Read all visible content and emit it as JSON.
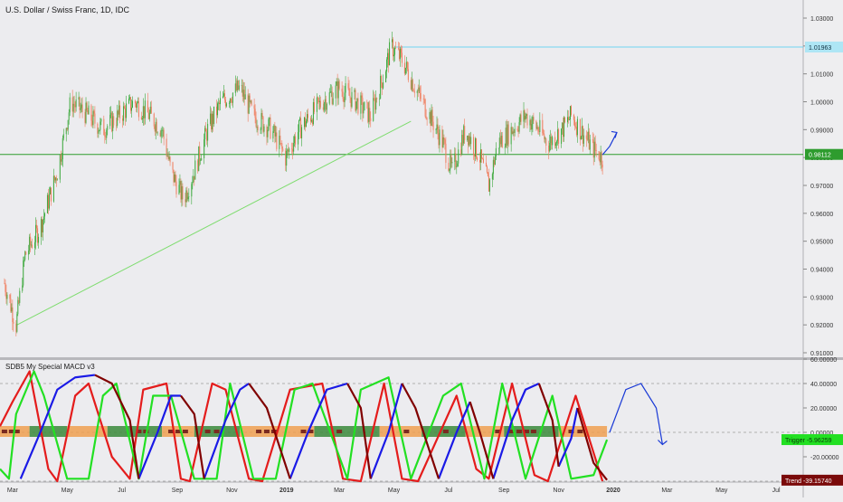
{
  "chart_data": [
    {
      "type": "candlestick",
      "title": "U.S. Dollar / Swiss Franc, 1D, IDC",
      "ylim": [
        0.91,
        1.03
      ],
      "y_ticks": [
        "0.91000",
        "0.92000",
        "0.93000",
        "0.94000",
        "0.95000",
        "0.96000",
        "0.97000",
        "0.98000",
        "0.99000",
        "1.00000",
        "1.01000",
        "1.02000",
        "1.03000"
      ],
      "x_ticks": [
        "Mar",
        "May",
        "Jul",
        "Sep",
        "Nov",
        "2019",
        "Mar",
        "May",
        "Jul",
        "Sep",
        "Nov",
        "2020",
        "Mar",
        "May",
        "Jul"
      ],
      "price_path": [
        {
          "x": "2018-02-20",
          "y": 0.935
        },
        {
          "x": "2018-03-05",
          "y": 0.92
        },
        {
          "x": "2018-03-15",
          "y": 0.945
        },
        {
          "x": "2018-04-01",
          "y": 0.955
        },
        {
          "x": "2018-04-20",
          "y": 0.975
        },
        {
          "x": "2018-05-05",
          "y": 1.0
        },
        {
          "x": "2018-05-25",
          "y": 0.995
        },
        {
          "x": "2018-06-10",
          "y": 0.99
        },
        {
          "x": "2018-06-28",
          "y": 0.995
        },
        {
          "x": "2018-07-15",
          "y": 1.0
        },
        {
          "x": "2018-08-01",
          "y": 0.995
        },
        {
          "x": "2018-08-15",
          "y": 0.99
        },
        {
          "x": "2018-08-25",
          "y": 0.975
        },
        {
          "x": "2018-09-08",
          "y": 0.965
        },
        {
          "x": "2018-09-20",
          "y": 0.975
        },
        {
          "x": "2018-10-05",
          "y": 0.99
        },
        {
          "x": "2018-10-20",
          "y": 1.0
        },
        {
          "x": "2018-11-10",
          "y": 1.005
        },
        {
          "x": "2018-11-25",
          "y": 0.995
        },
        {
          "x": "2018-12-15",
          "y": 0.99
        },
        {
          "x": "2018-12-31",
          "y": 0.98
        },
        {
          "x": "2019-01-15",
          "y": 0.99
        },
        {
          "x": "2019-02-10",
          "y": 1.0
        },
        {
          "x": "2019-03-01",
          "y": 1.005
        },
        {
          "x": "2019-03-20",
          "y": 1.0
        },
        {
          "x": "2019-04-05",
          "y": 0.995
        },
        {
          "x": "2019-04-20",
          "y": 1.01
        },
        {
          "x": "2019-04-28",
          "y": 1.02
        },
        {
          "x": "2019-05-10",
          "y": 1.015
        },
        {
          "x": "2019-05-25",
          "y": 1.005
        },
        {
          "x": "2019-06-10",
          "y": 0.995
        },
        {
          "x": "2019-06-25",
          "y": 0.985
        },
        {
          "x": "2019-07-05",
          "y": 0.975
        },
        {
          "x": "2019-07-20",
          "y": 0.99
        },
        {
          "x": "2019-08-05",
          "y": 0.98
        },
        {
          "x": "2019-08-15",
          "y": 0.97
        },
        {
          "x": "2019-08-25",
          "y": 0.985
        },
        {
          "x": "2019-09-10",
          "y": 0.99
        },
        {
          "x": "2019-09-25",
          "y": 0.995
        },
        {
          "x": "2019-10-10",
          "y": 0.99
        },
        {
          "x": "2019-10-20",
          "y": 0.985
        },
        {
          "x": "2019-11-05",
          "y": 0.99
        },
        {
          "x": "2019-11-15",
          "y": 0.995
        },
        {
          "x": "2019-11-25",
          "y": 0.99
        },
        {
          "x": "2019-12-10",
          "y": 0.983
        },
        {
          "x": "2019-12-20",
          "y": 0.98
        }
      ],
      "projection_path": [
        {
          "x": "2019-12-20",
          "y": 0.981
        },
        {
          "x": "2019-12-28",
          "y": 0.984
        },
        {
          "x": "2020-01-05",
          "y": 0.989
        }
      ],
      "trendline": [
        {
          "x": "2018-03-06",
          "y": 0.92
        },
        {
          "x": "2019-05-20",
          "y": 0.993
        }
      ],
      "hlines": [
        {
          "y": 1.01963,
          "label": "1.01963",
          "color": "#6fd3f0",
          "start_x": "2019-05-03"
        },
        {
          "y": 0.98112,
          "label": "0.98112",
          "color": "#2e9c2e",
          "start_x": "2018-02-15"
        }
      ],
      "colors": {
        "up": "#3ca83c",
        "down": "#f07a5a",
        "trendline": "#7edc6e",
        "projection": "#1a3ad6"
      }
    },
    {
      "type": "line",
      "title": "SDB5 My Special MACD v3",
      "ylim": [
        -40,
        60
      ],
      "y_ticks": [
        "60.00000",
        "40.00000",
        "20.00000",
        "0.00000",
        "-20.00000"
      ],
      "hlines": [
        40,
        0,
        -40
      ],
      "labels": [
        {
          "text": "Trigger  -5.96259",
          "y": -5.96259,
          "bg": "#22e022"
        },
        {
          "text": "Trend  -39.15740",
          "y": -39.1574,
          "bg": "#7a0a0a"
        }
      ],
      "series": [
        {
          "color": "#e41c1c",
          "values": [
            {
              "x": "2018-02-15",
              "y": 5
            },
            {
              "x": "2018-03-01",
              "y": 25
            },
            {
              "x": "2018-03-20",
              "y": 50
            },
            {
              "x": "2018-04-10",
              "y": -30
            },
            {
              "x": "2018-04-20",
              "y": -40
            },
            {
              "x": "2018-05-10",
              "y": 30
            },
            {
              "x": "2018-05-25",
              "y": 40
            },
            {
              "x": "2018-06-20",
              "y": -20
            },
            {
              "x": "2018-07-10",
              "y": -38
            },
            {
              "x": "2018-07-25",
              "y": 35
            },
            {
              "x": "2018-08-20",
              "y": 40
            },
            {
              "x": "2018-09-05",
              "y": -38
            },
            {
              "x": "2018-09-15",
              "y": -40
            },
            {
              "x": "2018-10-10",
              "y": 40
            },
            {
              "x": "2018-10-25",
              "y": 35
            },
            {
              "x": "2018-11-20",
              "y": -38
            },
            {
              "x": "2018-12-05",
              "y": -40
            },
            {
              "x": "2019-01-05",
              "y": 35
            },
            {
              "x": "2019-02-10",
              "y": 40
            },
            {
              "x": "2019-03-05",
              "y": -38
            },
            {
              "x": "2019-03-25",
              "y": -40
            },
            {
              "x": "2019-04-20",
              "y": 40
            },
            {
              "x": "2019-05-10",
              "y": -38
            },
            {
              "x": "2019-05-28",
              "y": -40
            },
            {
              "x": "2019-07-10",
              "y": 30
            },
            {
              "x": "2019-08-01",
              "y": -30
            },
            {
              "x": "2019-08-15",
              "y": -38
            },
            {
              "x": "2019-09-10",
              "y": 40
            },
            {
              "x": "2019-10-05",
              "y": -35
            },
            {
              "x": "2019-10-20",
              "y": -40
            },
            {
              "x": "2019-11-20",
              "y": 30
            },
            {
              "x": "2019-12-20",
              "y": -40
            }
          ]
        },
        {
          "color": "#22e022",
          "values": [
            {
              "x": "2018-02-15",
              "y": -30
            },
            {
              "x": "2018-02-25",
              "y": -38
            },
            {
              "x": "2018-03-05",
              "y": 15
            },
            {
              "x": "2018-03-25",
              "y": 50
            },
            {
              "x": "2018-04-05",
              "y": 30
            },
            {
              "x": "2018-05-01",
              "y": -38
            },
            {
              "x": "2018-05-25",
              "y": -38
            },
            {
              "x": "2018-06-10",
              "y": 30
            },
            {
              "x": "2018-06-25",
              "y": 40
            },
            {
              "x": "2018-07-20",
              "y": -38
            },
            {
              "x": "2018-08-05",
              "y": 30
            },
            {
              "x": "2018-08-25",
              "y": 30
            },
            {
              "x": "2018-09-20",
              "y": -38
            },
            {
              "x": "2018-10-15",
              "y": -38
            },
            {
              "x": "2018-10-30",
              "y": 40
            },
            {
              "x": "2018-11-25",
              "y": -38
            },
            {
              "x": "2018-12-20",
              "y": -38
            },
            {
              "x": "2019-01-10",
              "y": 35
            },
            {
              "x": "2019-01-30",
              "y": 40
            },
            {
              "x": "2019-03-10",
              "y": -38
            },
            {
              "x": "2019-03-25",
              "y": 35
            },
            {
              "x": "2019-04-25",
              "y": 45
            },
            {
              "x": "2019-05-20",
              "y": -38
            },
            {
              "x": "2019-06-25",
              "y": 30
            },
            {
              "x": "2019-07-15",
              "y": 40
            },
            {
              "x": "2019-08-10",
              "y": -38
            },
            {
              "x": "2019-08-30",
              "y": 40
            },
            {
              "x": "2019-09-25",
              "y": -38
            },
            {
              "x": "2019-10-25",
              "y": 30
            },
            {
              "x": "2019-11-15",
              "y": -38
            },
            {
              "x": "2019-12-10",
              "y": -35
            },
            {
              "x": "2019-12-25",
              "y": -6
            }
          ]
        },
        {
          "color": "#1a1ae6",
          "values": [
            {
              "x": "2018-03-10",
              "y": -38
            },
            {
              "x": "2018-04-01",
              "y": 0
            },
            {
              "x": "2018-04-20",
              "y": 35
            },
            {
              "x": "2018-05-10",
              "y": 45
            },
            {
              "x": "2018-06-01",
              "y": 47
            }
          ]
        },
        {
          "color": "#1a1ae6",
          "values": [
            {
              "x": "2018-07-20",
              "y": -38
            },
            {
              "x": "2018-08-10",
              "y": 0
            },
            {
              "x": "2018-08-25",
              "y": 30
            },
            {
              "x": "2018-09-05",
              "y": 30
            }
          ]
        },
        {
          "color": "#1a1ae6",
          "values": [
            {
              "x": "2018-10-01",
              "y": -38
            },
            {
              "x": "2018-10-25",
              "y": 10
            },
            {
              "x": "2018-11-10",
              "y": 35
            },
            {
              "x": "2018-11-20",
              "y": 40
            }
          ]
        },
        {
          "color": "#1a1ae6",
          "values": [
            {
              "x": "2019-01-05",
              "y": -38
            },
            {
              "x": "2019-01-25",
              "y": 0
            },
            {
              "x": "2019-02-15",
              "y": 35
            },
            {
              "x": "2019-03-10",
              "y": 40
            }
          ]
        },
        {
          "color": "#1a1ae6",
          "values": [
            {
              "x": "2019-04-05",
              "y": -38
            },
            {
              "x": "2019-04-25",
              "y": 0
            },
            {
              "x": "2019-05-10",
              "y": 40
            }
          ]
        },
        {
          "color": "#1a1ae6",
          "values": [
            {
              "x": "2019-06-20",
              "y": -38
            },
            {
              "x": "2019-07-10",
              "y": 0
            },
            {
              "x": "2019-07-25",
              "y": 25
            }
          ]
        },
        {
          "color": "#1a1ae6",
          "values": [
            {
              "x": "2019-08-20",
              "y": -38
            },
            {
              "x": "2019-09-10",
              "y": 10
            },
            {
              "x": "2019-09-25",
              "y": 35
            },
            {
              "x": "2019-10-10",
              "y": 40
            }
          ]
        },
        {
          "color": "#1a1ae6",
          "values": [
            {
              "x": "2019-11-01",
              "y": -28
            },
            {
              "x": "2019-11-15",
              "y": -5
            },
            {
              "x": "2019-11-22",
              "y": 20
            }
          ]
        },
        {
          "color": "#800000",
          "values": [
            {
              "x": "2018-06-01",
              "y": 47
            },
            {
              "x": "2018-06-20",
              "y": 40
            },
            {
              "x": "2018-07-10",
              "y": 10
            },
            {
              "x": "2018-07-20",
              "y": -38
            }
          ]
        },
        {
          "color": "#800000",
          "values": [
            {
              "x": "2018-09-05",
              "y": 30
            },
            {
              "x": "2018-09-20",
              "y": 15
            },
            {
              "x": "2018-10-01",
              "y": -38
            }
          ]
        },
        {
          "color": "#800000",
          "values": [
            {
              "x": "2018-11-20",
              "y": 40
            },
            {
              "x": "2018-12-10",
              "y": 20
            },
            {
              "x": "2019-01-05",
              "y": -38
            }
          ]
        },
        {
          "color": "#800000",
          "values": [
            {
              "x": "2019-03-10",
              "y": 40
            },
            {
              "x": "2019-03-25",
              "y": 20
            },
            {
              "x": "2019-04-05",
              "y": -38
            }
          ]
        },
        {
          "color": "#800000",
          "values": [
            {
              "x": "2019-05-10",
              "y": 40
            },
            {
              "x": "2019-05-25",
              "y": 20
            },
            {
              "x": "2019-06-20",
              "y": -38
            }
          ]
        },
        {
          "color": "#800000",
          "values": [
            {
              "x": "2019-07-25",
              "y": 25
            },
            {
              "x": "2019-08-05",
              "y": 0
            },
            {
              "x": "2019-08-20",
              "y": -38
            }
          ]
        },
        {
          "color": "#800000",
          "values": [
            {
              "x": "2019-10-10",
              "y": 40
            },
            {
              "x": "2019-10-25",
              "y": 10
            },
            {
              "x": "2019-11-01",
              "y": -28
            }
          ]
        },
        {
          "color": "#800000",
          "values": [
            {
              "x": "2019-11-22",
              "y": 20
            },
            {
              "x": "2019-12-10",
              "y": -25
            },
            {
              "x": "2019-12-25",
              "y": -39
            }
          ]
        }
      ],
      "projection_path": [
        {
          "x": "2019-12-28",
          "y": 0
        },
        {
          "x": "2020-01-15",
          "y": 35
        },
        {
          "x": "2020-02-01",
          "y": 40
        },
        {
          "x": "2020-02-18",
          "y": 20
        },
        {
          "x": "2020-02-25",
          "y": -10
        }
      ],
      "band": {
        "y": 0,
        "colors": {
          "orange": "#f0a050",
          "green": "#3a8a3a",
          "dark": "#7a2a20"
        },
        "segments": [
          {
            "from": "2018-02-15",
            "to": "2018-03-20",
            "color": "orange"
          },
          {
            "from": "2018-03-20",
            "to": "2018-05-01",
            "color": "green"
          },
          {
            "from": "2018-05-01",
            "to": "2018-06-15",
            "color": "orange"
          },
          {
            "from": "2018-06-15",
            "to": "2018-08-15",
            "color": "green"
          },
          {
            "from": "2018-08-15",
            "to": "2018-09-20",
            "color": "orange"
          },
          {
            "from": "2018-09-20",
            "to": "2018-11-10",
            "color": "green"
          },
          {
            "from": "2018-11-10",
            "to": "2019-02-01",
            "color": "orange"
          },
          {
            "from": "2019-02-01",
            "to": "2019-04-15",
            "color": "green"
          },
          {
            "from": "2019-04-15",
            "to": "2019-06-01",
            "color": "orange"
          },
          {
            "from": "2019-06-01",
            "to": "2019-07-20",
            "color": "green"
          },
          {
            "from": "2019-07-20",
            "to": "2019-09-01",
            "color": "orange"
          },
          {
            "from": "2019-09-01",
            "to": "2019-11-01",
            "color": "green"
          },
          {
            "from": "2019-11-01",
            "to": "2019-12-25",
            "color": "orange"
          }
        ],
        "dark_marks": [
          "2018-02-20",
          "2018-02-28",
          "2018-03-06",
          "2018-07-20",
          "2018-07-28",
          "2018-08-25",
          "2018-09-02",
          "2018-09-10",
          "2018-10-05",
          "2018-10-15",
          "2018-12-01",
          "2018-12-10",
          "2018-12-18",
          "2019-01-20",
          "2019-01-28",
          "2019-03-01",
          "2019-05-15",
          "2019-06-28",
          "2019-08-25",
          "2019-09-10",
          "2019-09-18",
          "2019-09-26",
          "2019-10-04",
          "2019-11-15",
          "2019-11-25"
        ]
      }
    }
  ]
}
